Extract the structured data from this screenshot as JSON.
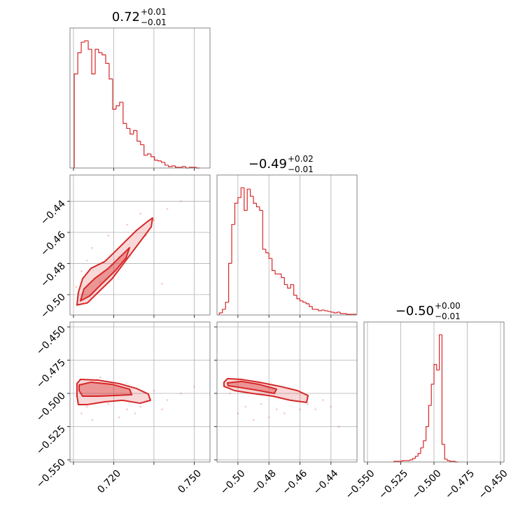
{
  "chart_data": [
    {
      "type": "histogram",
      "title": "0.72",
      "title_upper": "+0.01",
      "title_lower": "−0.01",
      "color": "#d62728",
      "grid": true,
      "xlim": [
        0.7037,
        0.7559
      ],
      "xticks": [
        0.705,
        0.72,
        0.735,
        0.75
      ],
      "ylim": [
        0,
        198
      ],
      "bins": [
        0.7053,
        0.7066,
        0.7079,
        0.7092,
        0.7105,
        0.7118,
        0.7131,
        0.7144,
        0.7157,
        0.717,
        0.7183,
        0.7196,
        0.7209,
        0.7222,
        0.7235,
        0.7248,
        0.7261,
        0.7274,
        0.7287,
        0.73,
        0.7313,
        0.7326,
        0.7339,
        0.7352,
        0.7365,
        0.7378,
        0.7391,
        0.7404,
        0.7417,
        0.743,
        0.7443,
        0.7456,
        0.7469,
        0.7482,
        0.7495,
        0.7508,
        0.7521
      ],
      "counts": [
        133,
        163,
        178,
        180,
        168,
        133,
        168,
        163,
        160,
        148,
        126,
        83,
        88,
        93,
        63,
        56,
        48,
        53,
        38,
        33,
        18,
        20,
        16,
        11,
        10,
        8,
        4,
        2,
        3,
        1,
        1,
        2,
        0,
        1,
        1,
        0
      ]
    },
    {
      "type": "scatter",
      "color": "#d62728",
      "grid": true,
      "xlim": [
        0.7037,
        0.7559
      ],
      "xticks": [
        0.705,
        0.72,
        0.735,
        0.75
      ],
      "ylim": [
        -0.5131,
        -0.4231
      ],
      "yticks": [
        {
          "value": -0.5,
          "label": "−0.50"
        },
        {
          "value": -0.48,
          "label": "−0.48"
        },
        {
          "value": -0.46,
          "label": "−0.46"
        },
        {
          "value": -0.44,
          "label": "−0.44"
        }
      ],
      "points": {
        "x": [
          0.712,
          0.718,
          0.725,
          0.708,
          0.73,
          0.715,
          0.722,
          0.735,
          0.71,
          0.74,
          0.728,
          0.706,
          0.745,
          0.732,
          0.738
        ],
        "y": [
          -0.47,
          -0.462,
          -0.455,
          -0.485,
          -0.448,
          -0.492,
          -0.476,
          -0.452,
          -0.478,
          -0.445,
          -0.47,
          -0.495,
          -0.44,
          -0.462,
          -0.493
        ]
      },
      "contours": [
        {
          "x": [
            0.7063,
            0.7068,
            0.7084,
            0.7115,
            0.7167,
            0.7207,
            0.7246,
            0.7285,
            0.7324,
            0.7345,
            0.734,
            0.7311,
            0.7272,
            0.7233,
            0.7194,
            0.7141,
            0.7102
          ],
          "y": [
            -0.5067,
            -0.4987,
            -0.4898,
            -0.4831,
            -0.4787,
            -0.472,
            -0.4653,
            -0.4587,
            -0.4533,
            -0.4507,
            -0.4564,
            -0.4631,
            -0.472,
            -0.4809,
            -0.4898,
            -0.4987,
            -0.5053
          ]
        },
        {
          "x": [
            0.7076,
            0.7089,
            0.7128,
            0.718,
            0.7233,
            0.7259,
            0.7246,
            0.7207,
            0.7154,
            0.711
          ],
          "y": [
            -0.504,
            -0.4964,
            -0.4898,
            -0.4831,
            -0.4742,
            -0.4698,
            -0.4764,
            -0.4844,
            -0.4933,
            -0.5009
          ]
        }
      ]
    },
    {
      "type": "histogram",
      "title": "−0.49",
      "title_upper": "+0.02",
      "title_lower": "−0.01",
      "color": "#d62728",
      "grid": true,
      "xlim": [
        -0.5135,
        -0.4232
      ],
      "xticks": [
        -0.5,
        -0.48,
        -0.46,
        -0.44
      ],
      "ylim": [
        0,
        198
      ],
      "bins": [
        -0.512,
        -0.51,
        -0.508,
        -0.506,
        -0.504,
        -0.502,
        -0.5,
        -0.498,
        -0.496,
        -0.494,
        -0.492,
        -0.49,
        -0.488,
        -0.486,
        -0.484,
        -0.482,
        -0.48,
        -0.478,
        -0.476,
        -0.474,
        -0.472,
        -0.47,
        -0.468,
        -0.466,
        -0.464,
        -0.462,
        -0.46,
        -0.458,
        -0.456,
        -0.454,
        -0.452,
        -0.45,
        -0.448,
        -0.446,
        -0.444,
        -0.442,
        -0.44,
        -0.438,
        -0.436,
        -0.434,
        -0.432,
        -0.43,
        -0.428,
        -0.426,
        -0.424
      ],
      "counts": [
        3,
        8,
        18,
        73,
        128,
        158,
        166,
        180,
        148,
        178,
        168,
        158,
        153,
        148,
        93,
        88,
        80,
        63,
        58,
        58,
        53,
        43,
        38,
        43,
        28,
        23,
        20,
        18,
        16,
        12,
        8,
        8,
        6,
        7,
        6,
        5,
        4,
        3,
        4,
        2,
        2,
        1,
        1,
        1
      ]
    },
    {
      "type": "scatter",
      "color": "#d62728",
      "grid": true,
      "xlim": [
        0.7037,
        0.7559
      ],
      "xticks": [
        0.705,
        {
          "value": 0.72,
          "label": "0.720"
        },
        0.735,
        {
          "value": 0.75,
          "label": "0.750"
        }
      ],
      "ylim": [
        -0.5516,
        -0.4463
      ],
      "yticks": [
        {
          "value": -0.55,
          "label": "−0.550"
        },
        {
          "value": -0.525,
          "label": "−0.525"
        },
        {
          "value": -0.5,
          "label": "−0.500"
        },
        {
          "value": -0.475,
          "label": "−0.475"
        },
        {
          "value": -0.45,
          "label": "−0.450"
        }
      ],
      "points": {
        "x": [
          0.71,
          0.718,
          0.725,
          0.735,
          0.74,
          0.708,
          0.73,
          0.715,
          0.745,
          0.722,
          0.75,
          0.712,
          0.728,
          0.738,
          0.706
        ],
        "y": [
          -0.51,
          -0.508,
          -0.512,
          -0.498,
          -0.505,
          -0.515,
          -0.51,
          -0.488,
          -0.5,
          -0.518,
          -0.495,
          -0.52,
          -0.515,
          -0.512,
          -0.502
        ]
      },
      "contours": [
        {
          "x": [
            0.7063,
            0.7076,
            0.7141,
            0.722,
            0.7285,
            0.7329,
            0.7337,
            0.7298,
            0.7233,
            0.7167,
            0.7102,
            0.7068,
            0.7063
          ],
          "y": [
            -0.4926,
            -0.4895,
            -0.49,
            -0.4926,
            -0.4963,
            -0.5005,
            -0.5052,
            -0.5074,
            -0.5052,
            -0.5063,
            -0.5084,
            -0.5084,
            -0.5016
          ]
        },
        {
          "x": [
            0.7071,
            0.7115,
            0.7194,
            0.7259,
            0.7267,
            0.7207,
            0.7141,
            0.7084,
            0.7071
          ],
          "y": [
            -0.4937,
            -0.4916,
            -0.4932,
            -0.4968,
            -0.501,
            -0.5016,
            -0.5021,
            -0.5021,
            -0.4979
          ]
        }
      ]
    },
    {
      "type": "scatter",
      "color": "#d62728",
      "grid": true,
      "xlim": [
        -0.5135,
        -0.4232
      ],
      "xticks": [
        {
          "value": -0.5,
          "label": "−0.50"
        },
        {
          "value": -0.48,
          "label": "−0.48"
        },
        {
          "value": -0.46,
          "label": "−0.46"
        },
        {
          "value": -0.44,
          "label": "−0.44"
        }
      ],
      "ylim": [
        -0.5516,
        -0.4463
      ],
      "yticks": [
        -0.55,
        -0.525,
        -0.5,
        -0.475,
        -0.45
      ],
      "points": {
        "x": [
          -0.495,
          -0.485,
          -0.475,
          -0.465,
          -0.455,
          -0.5,
          -0.47,
          -0.46,
          -0.445,
          -0.49,
          -0.48,
          -0.45,
          -0.505,
          -0.44,
          -0.435
        ],
        "y": [
          -0.51,
          -0.508,
          -0.512,
          -0.505,
          -0.508,
          -0.515,
          -0.515,
          -0.512,
          -0.505,
          -0.52,
          -0.518,
          -0.512,
          -0.5,
          -0.51,
          -0.525
        ]
      },
      "contours": [
        {
          "x": [
            -0.509,
            -0.5067,
            -0.4977,
            -0.4864,
            -0.4729,
            -0.4616,
            -0.4548,
            -0.4557,
            -0.4661,
            -0.4774,
            -0.4909,
            -0.5022,
            -0.509
          ],
          "y": [
            -0.4916,
            -0.4889,
            -0.4895,
            -0.4916,
            -0.4947,
            -0.4979,
            -0.5016,
            -0.5068,
            -0.5052,
            -0.5021,
            -0.5,
            -0.4979,
            -0.4947
          ]
        },
        {
          "x": [
            -0.5067,
            -0.4977,
            -0.4864,
            -0.4751,
            -0.4765,
            -0.4887,
            -0.5,
            -0.5063
          ],
          "y": [
            -0.4921,
            -0.491,
            -0.4932,
            -0.4968,
            -0.5,
            -0.4974,
            -0.4953,
            -0.4942
          ]
        }
      ]
    },
    {
      "type": "histogram",
      "title": "−0.50",
      "title_upper": "+0.00",
      "title_lower": "−0.01",
      "color": "#d62728",
      "grid": true,
      "xlim": [
        -0.5526,
        -0.4474
      ],
      "xticks": [
        {
          "value": -0.55,
          "label": "−0.550"
        },
        {
          "value": -0.525,
          "label": "−0.525"
        },
        {
          "value": -0.5,
          "label": "−0.500"
        },
        {
          "value": -0.475,
          "label": "−0.475"
        },
        {
          "value": -0.45,
          "label": "−0.450"
        }
      ],
      "ylim": [
        0,
        198
      ],
      "bins": [
        -0.53,
        -0.528,
        -0.526,
        -0.524,
        -0.522,
        -0.52,
        -0.518,
        -0.516,
        -0.514,
        -0.512,
        -0.51,
        -0.508,
        -0.506,
        -0.504,
        -0.502,
        -0.5,
        -0.498,
        -0.496,
        -0.494,
        -0.492,
        -0.49,
        -0.488,
        -0.486,
        -0.484,
        -0.482
      ],
      "counts": [
        1,
        1,
        1,
        2,
        2,
        2,
        3,
        5,
        8,
        12,
        20,
        30,
        50,
        80,
        110,
        138,
        130,
        180,
        25,
        4,
        2,
        1,
        1,
        0
      ]
    }
  ]
}
